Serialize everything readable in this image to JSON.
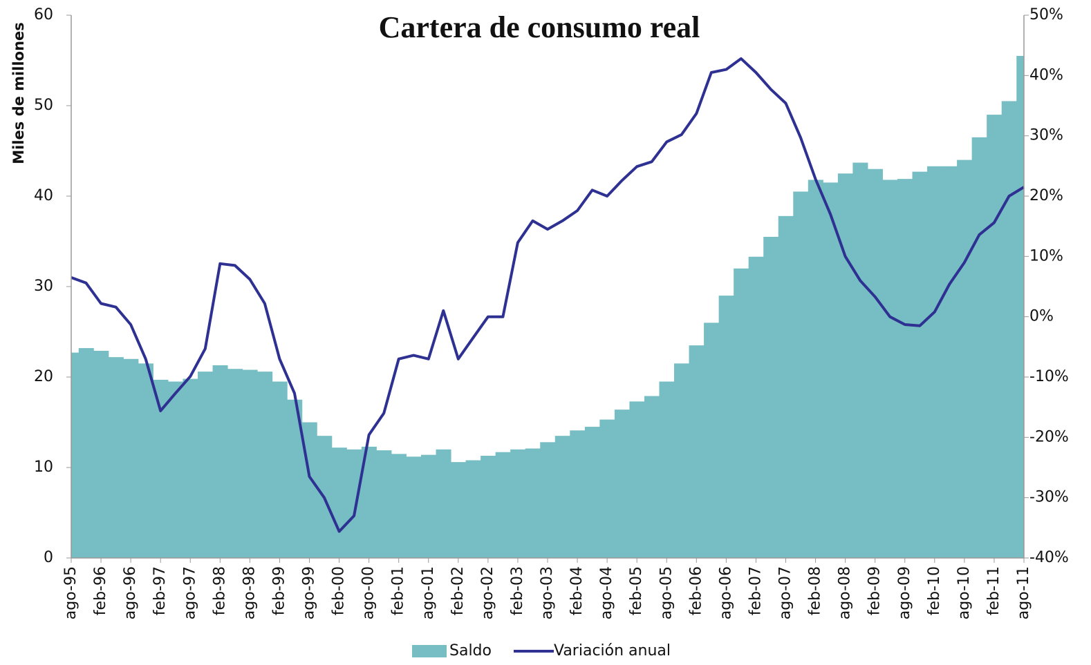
{
  "chart_data": {
    "type": "bar-line",
    "title": "Cartera de consumo real",
    "y_label": "Miles de millones",
    "categories": [
      "ago-95",
      null,
      "feb-96",
      null,
      "ago-96",
      null,
      "feb-97",
      null,
      "ago-97",
      null,
      "feb-98",
      null,
      "ago-98",
      null,
      "feb-99",
      null,
      "ago-99",
      null,
      "feb-00",
      null,
      "ago-00",
      null,
      "feb-01",
      null,
      "ago-01",
      null,
      "feb-02",
      null,
      "ago-02",
      null,
      "feb-03",
      null,
      "ago-03",
      null,
      "feb-04",
      null,
      "ago-04",
      null,
      "feb-05",
      null,
      "ago-05",
      null,
      "feb-06",
      null,
      "ago-06",
      null,
      "feb-07",
      null,
      "ago-07",
      null,
      "feb-08",
      null,
      "ago-08",
      null,
      "feb-09",
      null,
      "ago-09",
      null,
      "feb-10",
      null,
      "ago-10",
      null,
      "feb-11",
      null,
      "ago-11"
    ],
    "series": [
      {
        "name": "Saldo",
        "type": "bar",
        "color": "#76bec4",
        "values": [
          22.7,
          23.2,
          22.9,
          22.2,
          22.0,
          21.5,
          19.7,
          19.5,
          19.8,
          20.6,
          21.3,
          20.9,
          20.8,
          20.6,
          19.5,
          17.5,
          15.0,
          13.5,
          12.2,
          12.0,
          12.3,
          11.9,
          11.5,
          11.2,
          11.4,
          12.0,
          10.6,
          10.8,
          11.3,
          11.7,
          12.0,
          12.1,
          12.8,
          13.5,
          14.1,
          14.5,
          15.3,
          16.4,
          17.3,
          17.9,
          19.5,
          21.5,
          23.5,
          26.0,
          29.0,
          32.0,
          33.3,
          35.5,
          37.8,
          40.5,
          41.8,
          41.5,
          42.5,
          43.7,
          43.0,
          41.8,
          41.9,
          42.7,
          43.3,
          43.3,
          44.0,
          46.5,
          49.0,
          50.5,
          55.5
        ]
      },
      {
        "name": "Variación anual",
        "type": "line",
        "axis": "y2",
        "color": "#2e3192",
        "values": [
          6.5,
          5.6,
          2.2,
          1.6,
          -1.3,
          -7,
          -15.6,
          -12.7,
          -9.9,
          -5.3,
          8.8,
          8.5,
          6.2,
          2.2,
          -7,
          -12.7,
          -26.5,
          -30,
          -35.6,
          -33,
          -19.6,
          -16,
          -7,
          -6.4,
          -7,
          1,
          -7,
          -3.5,
          0,
          0,
          12.3,
          15.9,
          14.5,
          15.9,
          17.6,
          21,
          20,
          22.6,
          24.9,
          25.7,
          29,
          30.2,
          33.7,
          40.5,
          41,
          42.8,
          40.5,
          37.7,
          35.4,
          29.7,
          22.8,
          17,
          10,
          6,
          3.3,
          0,
          -1.3,
          -1.5,
          0.8,
          5.4,
          9,
          13.6,
          15.6,
          20,
          21.5
        ]
      }
    ],
    "ylim": [
      0,
      60
    ],
    "yticks": [
      0,
      10,
      20,
      30,
      40,
      50,
      60
    ],
    "y2lim": [
      -40,
      50
    ],
    "y2ticks": [
      {
        "value": -40,
        "label": "-40%"
      },
      {
        "value": -30,
        "label": "-30%"
      },
      {
        "value": -20,
        "label": "-20%"
      },
      {
        "value": -10,
        "label": "-10%"
      },
      {
        "value": 0,
        "label": "0%"
      },
      {
        "value": 10,
        "label": "10%"
      },
      {
        "value": 20,
        "label": "20%"
      },
      {
        "value": 30,
        "label": "30%"
      },
      {
        "value": 40,
        "label": "40%"
      },
      {
        "value": 50,
        "label": "50%"
      }
    ],
    "grid": false,
    "legend": "bottom"
  }
}
